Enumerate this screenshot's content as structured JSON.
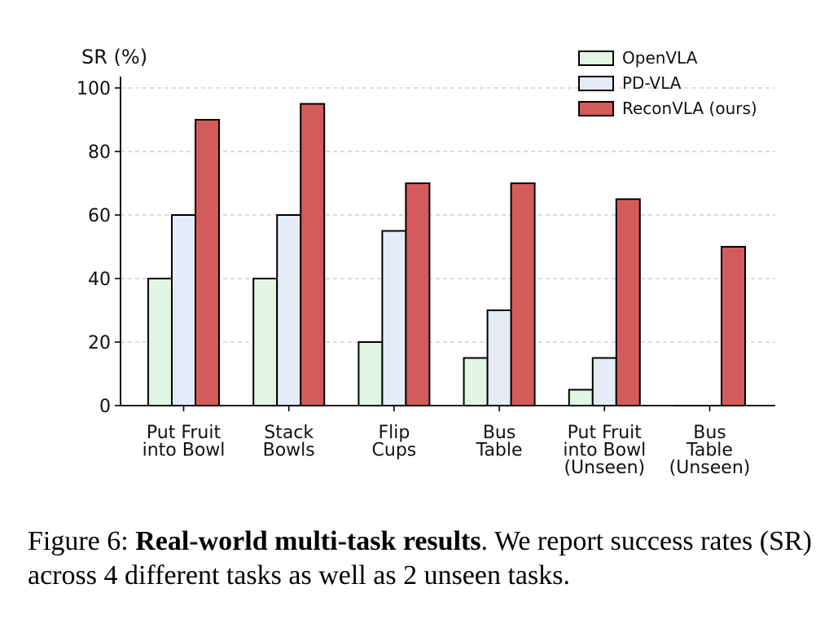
{
  "chart_data": {
    "type": "bar",
    "title": "",
    "xlabel": "",
    "ylabel": "SR (%)",
    "ylim": [
      0,
      100
    ],
    "yticks": [
      0,
      20,
      40,
      60,
      80,
      100
    ],
    "grid": "horizontal-dashed",
    "legend_position": "top-right",
    "categories": [
      [
        "Put Fruit",
        "into Bowl"
      ],
      [
        "Stack",
        "Bowls"
      ],
      [
        "Flip",
        "Cups"
      ],
      [
        "Bus",
        "Table"
      ],
      [
        "Put Fruit",
        "into Bowl",
        "(Unseen)"
      ],
      [
        "Bus",
        "Table",
        "(Unseen)"
      ]
    ],
    "series": [
      {
        "name": "OpenVLA",
        "color": "#e2f4e3",
        "values": [
          40,
          40,
          20,
          15,
          5,
          0
        ]
      },
      {
        "name": "PD-VLA",
        "color": "#e6ebf8",
        "values": [
          60,
          60,
          55,
          30,
          15,
          0
        ]
      },
      {
        "name": "ReconVLA (ours)",
        "color": "#d45b5b",
        "values": [
          90,
          95,
          70,
          70,
          65,
          50
        ]
      }
    ]
  },
  "caption": {
    "prefix": "Figure 6: ",
    "bold": "Real-world multi-task results",
    "rest": ". We report success rates (SR) across 4 different tasks as well as 2 unseen tasks."
  }
}
